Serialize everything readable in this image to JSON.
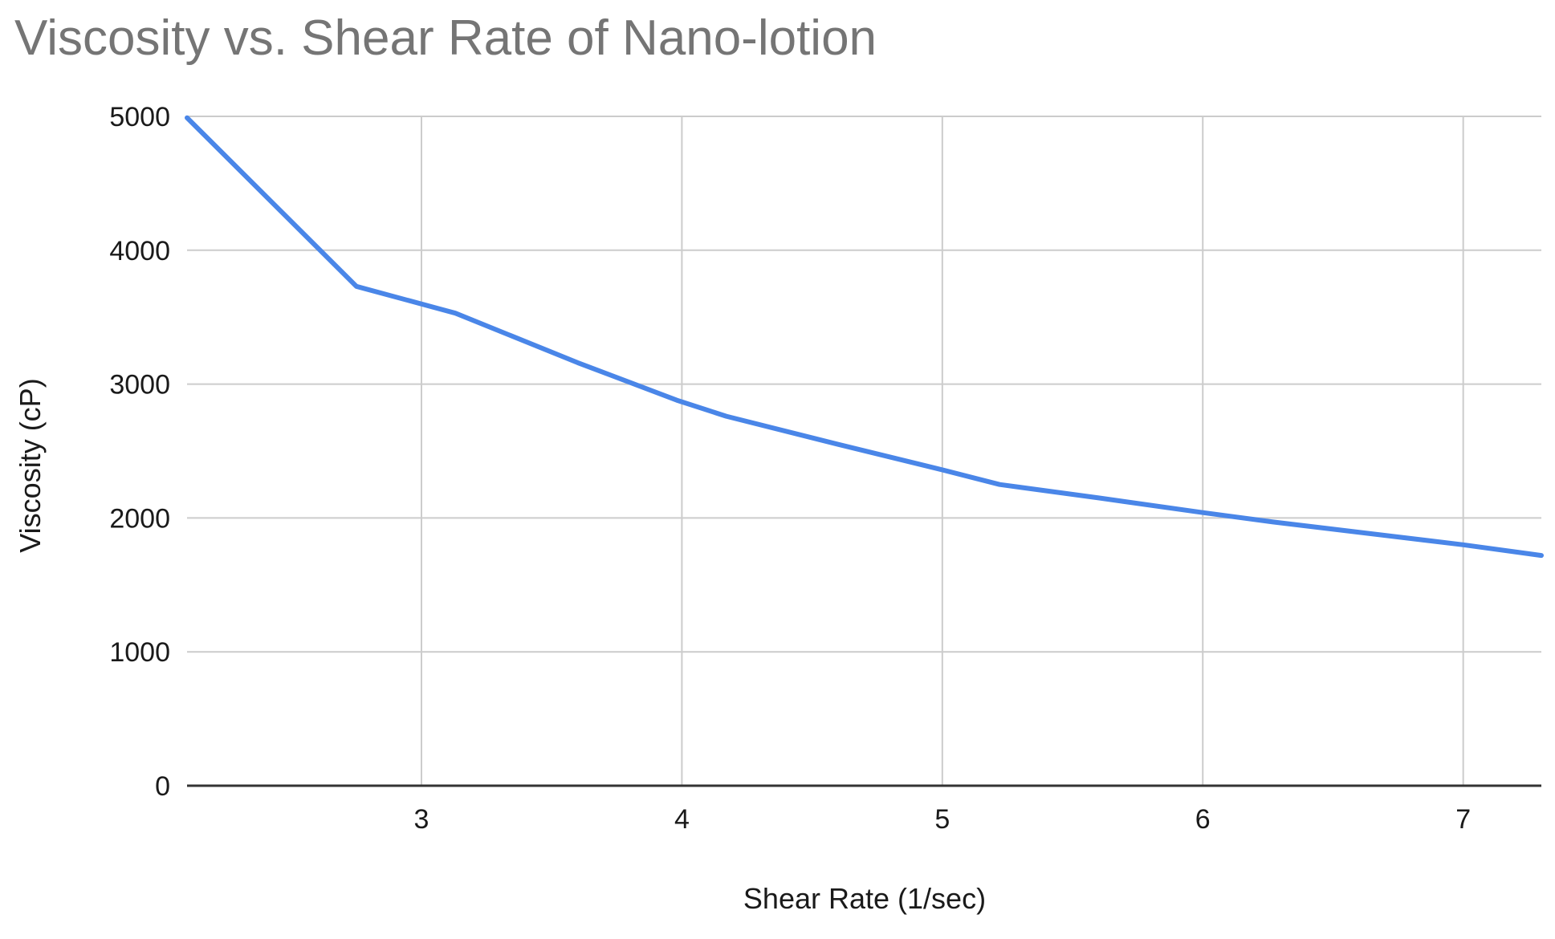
{
  "chart_data": {
    "type": "line",
    "title": "Viscosity vs. Shear Rate of Nano-lotion",
    "xlabel": "Shear Rate (1/sec)",
    "ylabel": "Viscosity (cP)",
    "xlim": [
      2.1,
      7.3
    ],
    "ylim": [
      0,
      5000
    ],
    "x_ticks": [
      3,
      4,
      5,
      6,
      7
    ],
    "y_ticks": [
      0,
      1000,
      2000,
      3000,
      4000,
      5000
    ],
    "grid": true,
    "legend": "none",
    "colors": {
      "series": "#4a86e8",
      "grid": "#cccccc",
      "axis": "#333333",
      "title": "#757575"
    },
    "series": [
      {
        "x": [
          2.1,
          2.75,
          3.13,
          3.6,
          3.98,
          4.17,
          4.6,
          5.0,
          5.22,
          5.6,
          6.0,
          6.27,
          6.7,
          7.0,
          7.3
        ],
        "y": [
          4990,
          3730,
          3530,
          3160,
          2880,
          2760,
          2550,
          2360,
          2250,
          2150,
          2040,
          1970,
          1870,
          1800,
          1720
        ]
      }
    ]
  }
}
